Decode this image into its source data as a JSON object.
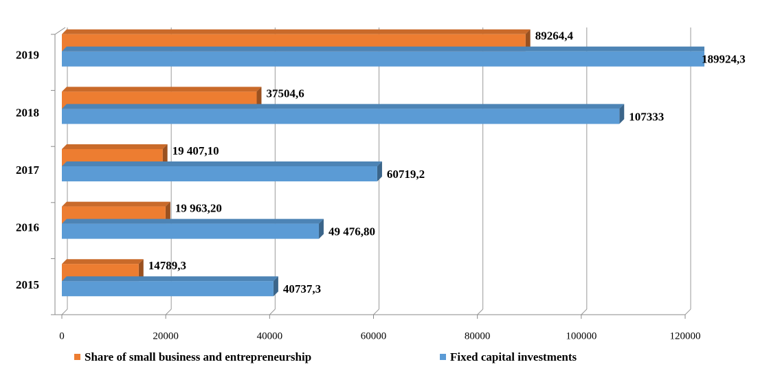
{
  "chart_data": {
    "type": "bar",
    "orientation": "horizontal",
    "categories": [
      "2015",
      "2016",
      "2017",
      "2018",
      "2019"
    ],
    "series": [
      {
        "name": "Share of small business and entrepreneurship",
        "color": "#ed7d31",
        "values": [
          14789.3,
          19963.2,
          19407.1,
          37504.6,
          89264.4
        ],
        "value_labels": [
          "14789,3",
          "19 963,20",
          "19 407,10",
          "37504,6",
          "89264,4"
        ]
      },
      {
        "name": "Fixed capital investments",
        "color": "#5b9bd5",
        "values": [
          40737.3,
          49476.8,
          60719.2,
          107333,
          189924.3
        ],
        "value_labels": [
          "40737,3",
          "49 476,80",
          "60719,2",
          "107333",
          "189924,3"
        ]
      }
    ],
    "xlim": [
      0,
      120000
    ],
    "xticks": [
      0,
      20000,
      40000,
      60000,
      80000,
      100000,
      120000
    ],
    "grid": true,
    "legend": "bottom"
  }
}
